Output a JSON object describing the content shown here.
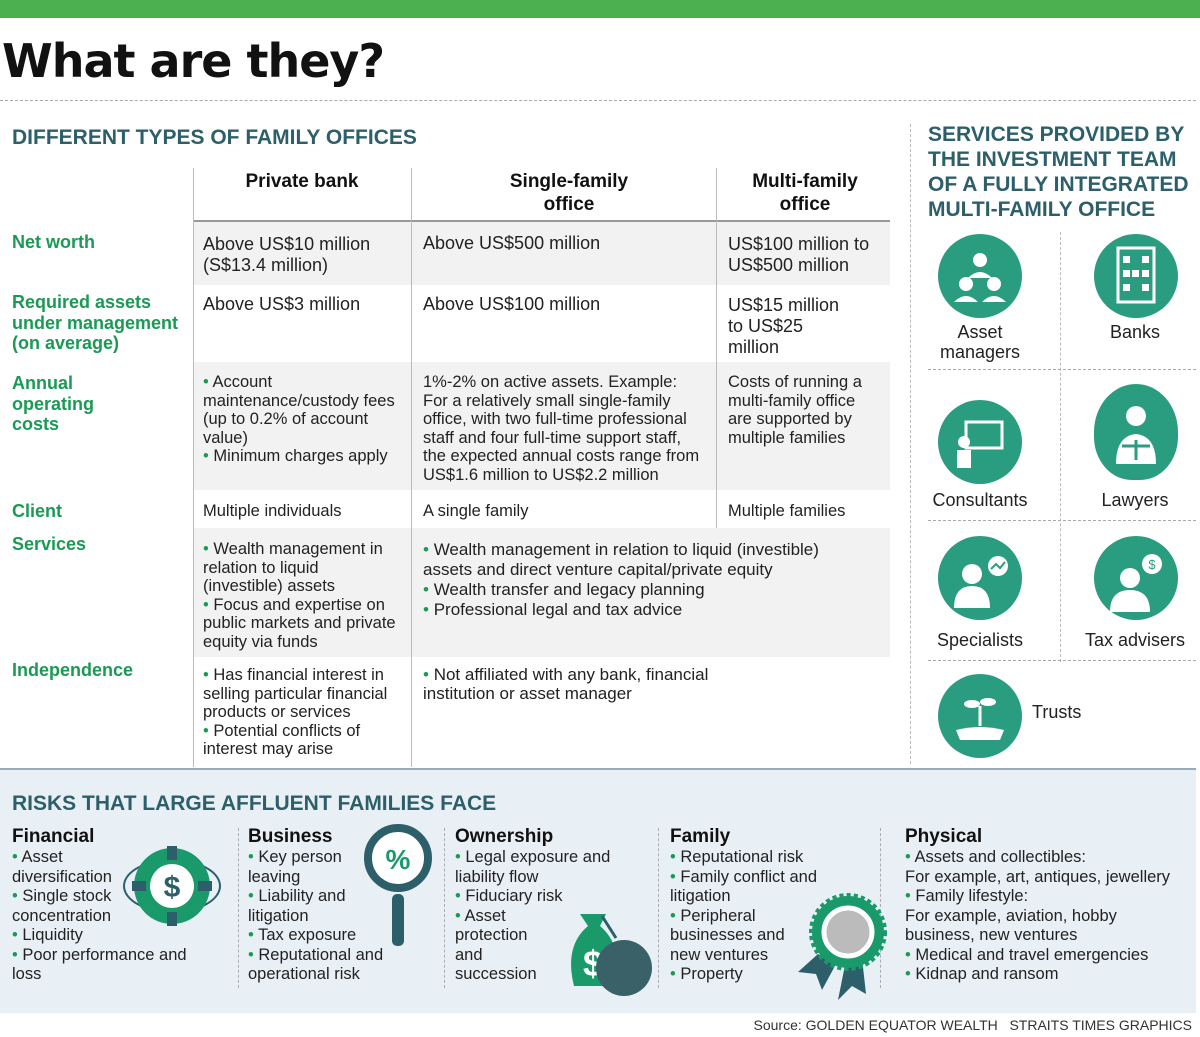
{
  "header": {
    "title": "What are they?"
  },
  "types": {
    "heading": "DIFFERENT TYPES OF FAMILY OFFICES",
    "columns": [
      "Private bank",
      "Single-family office",
      "Multi-family office"
    ],
    "rows": [
      {
        "label": "Net worth",
        "private": "Above US$10 million (S$13.4 million)",
        "single": "Above US$500 million",
        "multi": "US$100 million to US$500 million"
      },
      {
        "label": "Required assets under management (on average)",
        "private": "Above US$3 million",
        "single": "Above US$100 million",
        "multi": "US$15 million to US$25 million"
      },
      {
        "label": "Annual operating costs",
        "private": [
          "Account maintenance/custody fees (up to 0.2% of account value)",
          "Minimum charges apply"
        ],
        "single": "1%-2% on active assets. Example: For a relatively small single-family office, with two full-time professional staff and four full-time support staff, the expected annual costs range from US$1.6 million to US$2.2 million",
        "multi": "Costs of running a multi-family office are supported by multiple families"
      },
      {
        "label": "Client",
        "private": "Multiple individuals",
        "single": "A single family",
        "multi": "Multiple families"
      },
      {
        "label": "Services",
        "private": [
          "Wealth management in relation to liquid (investible) assets",
          "Focus and expertise on public markets and private equity via funds"
        ],
        "office": [
          "Wealth management in relation to liquid (investible) assets and direct venture capital/private equity",
          "Wealth transfer and legacy planning",
          "Professional legal and tax advice"
        ]
      },
      {
        "label": "Independence",
        "private": [
          "Has financial interest in selling particular financial products or services",
          "Potential conflicts of interest may arise"
        ],
        "office": [
          "Not affiliated with any bank, financial institution or asset manager"
        ]
      }
    ]
  },
  "services": {
    "heading": "SERVICES PROVIDED BY THE INVESTMENT TEAM OF A FULLY INTEGRATED MULTI-FAMILY OFFICE",
    "items": [
      {
        "label": "Asset managers",
        "icon": "people-icon"
      },
      {
        "label": "Banks",
        "icon": "bank-building-icon"
      },
      {
        "label": "Consultants",
        "icon": "presentation-icon"
      },
      {
        "label": "Lawyers",
        "icon": "lawyer-scales-icon"
      },
      {
        "label": "Specialists",
        "icon": "specialist-chart-icon"
      },
      {
        "label": "Tax advisers",
        "icon": "tax-adviser-icon"
      },
      {
        "label": "Trusts",
        "icon": "plant-hand-icon"
      }
    ]
  },
  "risks": {
    "heading": "RISKS THAT LARGE AFFLUENT FAMILIES FACE",
    "groups": [
      {
        "title": "Financial",
        "items": [
          "Asset diversification",
          "Single stock concentration",
          "Liquidity",
          "Poor performance and loss"
        ]
      },
      {
        "title": "Business",
        "items": [
          "Key person leaving",
          "Liability and litigation",
          "Tax exposure",
          "Reputational and operational risk"
        ]
      },
      {
        "title": "Ownership",
        "items": [
          "Legal exposure and liability flow",
          "Fiduciary risk",
          "Asset protection and succession"
        ]
      },
      {
        "title": "Family",
        "items": [
          "Reputational risk",
          "Family conflict and litigation",
          "Peripheral businesses and new ventures",
          "Property"
        ]
      },
      {
        "title": "Physical",
        "items": [
          "Assets and collectibles:",
          "Family lifestyle:",
          "Medical and travel emergencies",
          "Kidnap and ransom"
        ],
        "notes": [
          "For example, art, antiques, jewellery",
          "For example, aviation, hobby business, new ventures"
        ]
      }
    ]
  },
  "footer": {
    "source": "Source: GOLDEN EQUATOR WEALTH   STRAITS TIMES GRAPHICS"
  },
  "colors": {
    "accent_green": "#1a9a55",
    "teal": "#2a9d80",
    "heading": "#2d5f6b",
    "top_bar": "#4caf50"
  }
}
